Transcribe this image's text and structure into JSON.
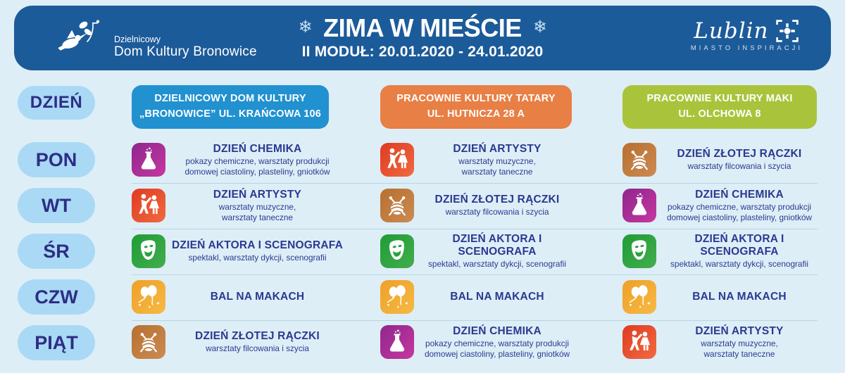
{
  "header": {
    "logo_left": {
      "line_small": "Dzielnicowy",
      "line_big": "Dom Kultury Bronowice"
    },
    "title": "ZIMA W MIEŚCIE",
    "snowflake": "❄",
    "subtitle": "II MODUŁ: 20.01.2020 - 24.01.2020",
    "logo_right": {
      "name": "Lublin",
      "tagline": "MIASTO INSPIRACJI"
    }
  },
  "colors": {
    "background": "#ddeef7",
    "banner": "#1c5b99",
    "day_pill": "#a9d9f5",
    "text_navy": "#2b3990",
    "column_bronowice": "#2191d0",
    "column_tatary": "#e87f45",
    "column_maki": "#a9c43b",
    "tile_flask": "#aa2c96",
    "tile_dancers": "#e94f2d",
    "tile_yarn": "#c17c45",
    "tile_mask": "#2aa13f",
    "tile_balloons": "#f2ab32"
  },
  "schedule": {
    "day_header": "DZIEŃ",
    "columns": [
      {
        "line1": "DZIELNICOWY DOM KULTURY",
        "line2": "„BRONOWICE” UL. KRAŃCOWA 106",
        "color": "#2191d0"
      },
      {
        "line1": "PRACOWNIE KULTURY TATARY",
        "line2": "UL. HUTNICZA 28 A",
        "color": "#e87f45"
      },
      {
        "line1": "PRACOWNIE KULTURY MAKI",
        "line2": "UL. OLCHOWA 8",
        "color": "#a9c43b"
      }
    ],
    "rows": [
      {
        "day": "PON",
        "cells": [
          {
            "icon": "flask-icon",
            "title": "DZIEŃ CHEMIKA",
            "subtitle": "pokazy chemiczne, warsztaty produkcji\ndomowej ciastoliny, plasteliny, gniotków"
          },
          {
            "icon": "dancers-icon",
            "title": "DZIEŃ ARTYSTY",
            "subtitle": "warsztaty muzyczne,\nwarsztaty taneczne"
          },
          {
            "icon": "yarn-icon",
            "title": "DZIEŃ ZŁOTEJ RĄCZKI",
            "subtitle": "warsztaty filcowania i szycia"
          }
        ]
      },
      {
        "day": "WT",
        "cells": [
          {
            "icon": "dancers-icon",
            "title": "DZIEŃ ARTYSTY",
            "subtitle": "warsztaty muzyczne,\nwarsztaty taneczne"
          },
          {
            "icon": "yarn-icon",
            "title": "DZIEŃ ZŁOTEJ RĄCZKI",
            "subtitle": "warsztaty filcowania i szycia"
          },
          {
            "icon": "flask-icon",
            "title": "DZIEŃ CHEMIKA",
            "subtitle": "pokazy chemiczne, warsztaty produkcji\ndomowej ciastoliny, plasteliny, gniotków"
          }
        ]
      },
      {
        "day": "ŚR",
        "cells": [
          {
            "icon": "mask-icon",
            "title": "DZIEŃ AKTORA I SCENOGRAFA",
            "subtitle": "spektakl, warsztaty dykcji, scenografii"
          },
          {
            "icon": "mask-icon",
            "title": "DZIEŃ AKTORA I SCENOGRAFA",
            "subtitle": "spektakl, warsztaty dykcji, scenografii"
          },
          {
            "icon": "mask-icon",
            "title": "DZIEŃ AKTORA I SCENOGRAFA",
            "subtitle": "spektakl, warsztaty dykcji, scenografii"
          }
        ]
      },
      {
        "day": "CZW",
        "cells": [
          {
            "icon": "balloons-icon",
            "title": "BAL NA MAKACH",
            "subtitle": ""
          },
          {
            "icon": "balloons-icon",
            "title": "BAL NA MAKACH",
            "subtitle": ""
          },
          {
            "icon": "balloons-icon",
            "title": "BAL NA MAKACH",
            "subtitle": ""
          }
        ]
      },
      {
        "day": "PIĄT",
        "cells": [
          {
            "icon": "yarn-icon",
            "title": "DZIEŃ ZŁOTEJ RĄCZKI",
            "subtitle": "warsztaty filcowania i szycia"
          },
          {
            "icon": "flask-icon",
            "title": "DZIEŃ CHEMIKA",
            "subtitle": "pokazy chemiczne, warsztaty produkcji\ndomowej ciastoliny, plasteliny, gniotków"
          },
          {
            "icon": "dancers-icon",
            "title": "DZIEŃ ARTYSTY",
            "subtitle": "warsztaty muzyczne,\nwarsztaty taneczne"
          }
        ]
      }
    ]
  }
}
